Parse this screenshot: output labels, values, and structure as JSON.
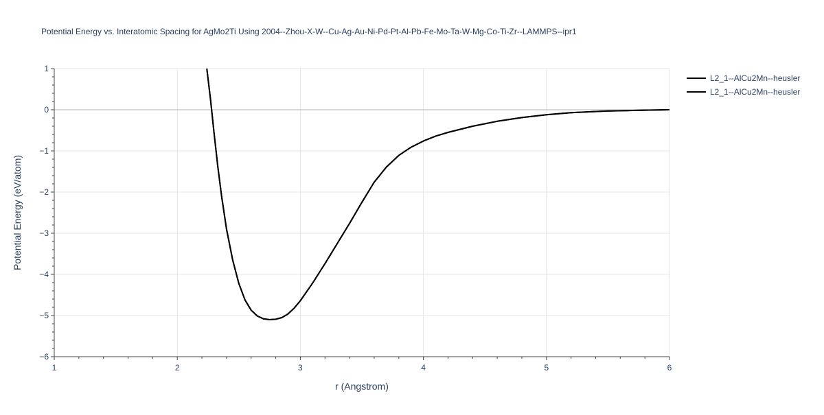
{
  "chart_data": {
    "type": "line",
    "title": "Potential Energy vs. Interatomic Spacing for AgMo2Ti Using 2004--Zhou-X-W--Cu-Ag-Au-Ni-Pd-Pt-Al-Pb-Fe-Mo-Ta-W-Mg-Co-Ti-Zr--LAMMPS--ipr1",
    "xlabel": "r (Angstrom)",
    "ylabel": "Potential Energy (eV/atom)",
    "xlim": [
      1,
      6
    ],
    "ylim": [
      -6,
      1
    ],
    "xticks": [
      1,
      2,
      3,
      4,
      5,
      6
    ],
    "xtick_labels": [
      "1",
      "2",
      "3",
      "4",
      "5",
      "6"
    ],
    "yticks": [
      1,
      0,
      -1,
      -2,
      -3,
      -4,
      -5,
      -6
    ],
    "ytick_labels": [
      "1",
      "0",
      "−1",
      "−2",
      "−3",
      "−4",
      "−5",
      "−6"
    ],
    "grid": true,
    "legend_position": "top-right",
    "colors": {
      "line": "#000000",
      "grid": "#e5e5e5",
      "zeroline": "#c8c8c8",
      "text": "#2a3f5f",
      "axis": "#444444"
    },
    "series": [
      {
        "name": "L2_1--AlCu2Mn--heusler",
        "x": [
          2.24,
          2.27,
          2.3,
          2.33,
          2.36,
          2.4,
          2.45,
          2.5,
          2.55,
          2.6,
          2.65,
          2.7,
          2.75,
          2.8,
          2.85,
          2.9,
          2.95,
          3.0,
          3.1,
          3.2,
          3.3,
          3.4,
          3.5,
          3.6,
          3.7,
          3.8,
          3.9,
          4.0,
          4.1,
          4.2,
          4.4,
          4.6,
          4.8,
          5.0,
          5.2,
          5.5,
          5.8,
          6.0
        ],
        "y": [
          1.0,
          0.25,
          -0.6,
          -1.4,
          -2.1,
          -2.9,
          -3.65,
          -4.22,
          -4.62,
          -4.87,
          -5.01,
          -5.08,
          -5.1,
          -5.09,
          -5.05,
          -4.96,
          -4.82,
          -4.64,
          -4.21,
          -3.74,
          -3.25,
          -2.76,
          -2.25,
          -1.76,
          -1.39,
          -1.11,
          -0.91,
          -0.76,
          -0.64,
          -0.55,
          -0.4,
          -0.28,
          -0.19,
          -0.12,
          -0.07,
          -0.03,
          -0.01,
          0.0
        ]
      },
      {
        "name": "L2_1--AlCu2Mn--heusler",
        "x": [
          2.24,
          2.27,
          2.3,
          2.33,
          2.36,
          2.4,
          2.45,
          2.5,
          2.55,
          2.6,
          2.65,
          2.7,
          2.75,
          2.8,
          2.85,
          2.9,
          2.95,
          3.0,
          3.1,
          3.2,
          3.3,
          3.4,
          3.5,
          3.6,
          3.7,
          3.8,
          3.9,
          4.0,
          4.1,
          4.2,
          4.4,
          4.6,
          4.8,
          5.0,
          5.2,
          5.5,
          5.8,
          6.0
        ],
        "y": [
          1.0,
          0.25,
          -0.6,
          -1.4,
          -2.1,
          -2.9,
          -3.65,
          -4.22,
          -4.62,
          -4.87,
          -5.01,
          -5.08,
          -5.1,
          -5.09,
          -5.05,
          -4.96,
          -4.82,
          -4.64,
          -4.21,
          -3.74,
          -3.25,
          -2.76,
          -2.25,
          -1.76,
          -1.39,
          -1.11,
          -0.91,
          -0.76,
          -0.64,
          -0.55,
          -0.4,
          -0.28,
          -0.19,
          -0.12,
          -0.07,
          -0.03,
          -0.01,
          0.0
        ]
      }
    ]
  }
}
